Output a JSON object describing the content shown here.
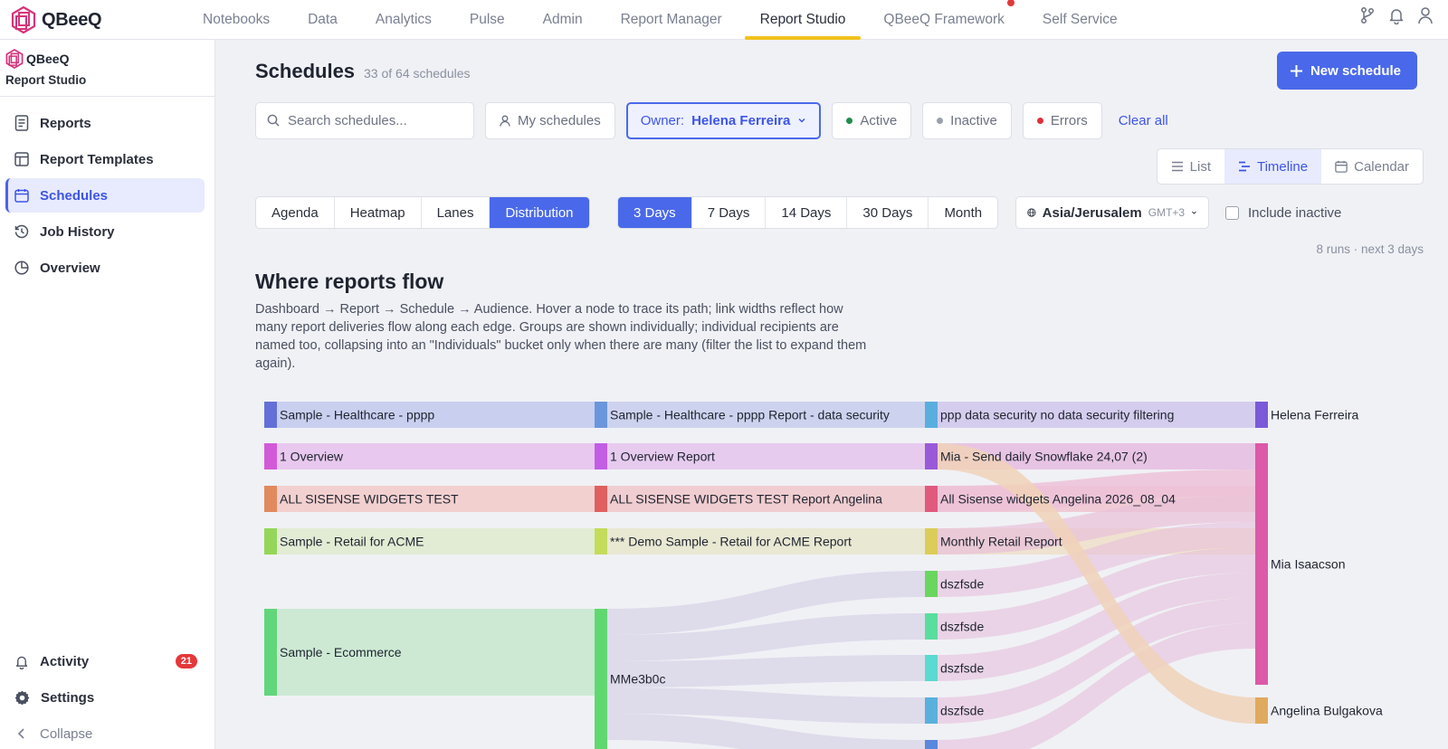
{
  "brand": {
    "name": "QBeeQ"
  },
  "topnav": {
    "items": [
      {
        "label": "Notebooks"
      },
      {
        "label": "Data"
      },
      {
        "label": "Analytics"
      },
      {
        "label": "Pulse"
      },
      {
        "label": "Admin"
      },
      {
        "label": "Report Manager"
      },
      {
        "label": "Report Studio"
      },
      {
        "label": "QBeeQ Framework"
      },
      {
        "label": "Self Service"
      }
    ],
    "active": "Report Studio",
    "notification_on": "QBeeQ Framework"
  },
  "sidebar": {
    "brand": "QBeeQ",
    "subtitle": "Report Studio",
    "items": [
      {
        "label": "Reports",
        "icon": "document-icon"
      },
      {
        "label": "Report Templates",
        "icon": "template-icon"
      },
      {
        "label": "Schedules",
        "icon": "calendar-icon",
        "active": true
      },
      {
        "label": "Job History",
        "icon": "history-icon"
      },
      {
        "label": "Overview",
        "icon": "pie-icon"
      }
    ],
    "activity": {
      "label": "Activity",
      "badge": "21"
    },
    "settings": {
      "label": "Settings"
    },
    "collapse": {
      "label": "Collapse"
    }
  },
  "header": {
    "title": "Schedules",
    "count": "33 of 64 schedules",
    "new_button": "New schedule"
  },
  "filters": {
    "search_placeholder": "Search schedules...",
    "my_schedules": "My schedules",
    "owner_label": "Owner:",
    "owner_value": "Helena Ferreira",
    "active": "Active",
    "inactive": "Inactive",
    "errors": "Errors",
    "clear_all": "Clear all",
    "colors": {
      "active": "#1e8e4e",
      "inactive": "#9aa0ad",
      "errors": "#e0303a"
    }
  },
  "view_toggle": [
    {
      "label": "List"
    },
    {
      "label": "Timeline",
      "active": true
    },
    {
      "label": "Calendar"
    }
  ],
  "mode_tabs": [
    {
      "label": "Agenda"
    },
    {
      "label": "Heatmap"
    },
    {
      "label": "Lanes"
    },
    {
      "label": "Distribution",
      "active": true
    }
  ],
  "range_tabs": [
    {
      "label": "3 Days",
      "active": true
    },
    {
      "label": "7 Days"
    },
    {
      "label": "14 Days"
    },
    {
      "label": "30 Days"
    },
    {
      "label": "Month"
    }
  ],
  "timezone": {
    "name": "Asia/Jerusalem",
    "offset": "GMT+3"
  },
  "include_inactive": {
    "label": "Include inactive",
    "checked": false
  },
  "runs_summary": "8 runs · next 3 days",
  "section": {
    "title": "Where reports flow",
    "description": "Dashboard → Report → Schedule → Audience. Hover a node to trace its path; link widths reflect how many report deliveries flow along each edge. Groups are shown individually; individual recipients are named too, collapsing into an \"Individuals\" bucket only when there are many (filter the list to expand them again)."
  },
  "sankey": {
    "columns": [
      [
        {
          "label": "Sample - Healthcare - pppp",
          "color": "#6470d8",
          "band": "#c9cfef"
        },
        {
          "label": "1 Overview",
          "color": "#d25ad8",
          "band": "#e8c8ee"
        },
        {
          "label": "ALL SISENSE WIDGETS TEST",
          "color": "#e08a5e",
          "band": "#f2d0cf"
        },
        {
          "label": "Sample - Retail for ACME",
          "color": "#95d65a",
          "band": "#e2ecd4"
        },
        {
          "label": "Sample - Ecommerce",
          "color": "#62d67a",
          "band": "#cde9d4"
        }
      ],
      [
        {
          "label": "Sample - Healthcare - pppp Report - data security",
          "color": "#6a96dc",
          "band": "#cdd3ee"
        },
        {
          "label": "1 Overview Report",
          "color": "#c25ee6",
          "band": "#e6cbef"
        },
        {
          "label": "ALL SISENSE WIDGETS TEST Report Angelina",
          "color": "#e06060",
          "band": "#f0cdd0"
        },
        {
          "label": "*** Demo Sample - Retail for ACME Report",
          "color": "#c4dc5a",
          "band": "#e9e8d3"
        },
        {
          "label": "MMe3b0c",
          "color": "#60d870",
          "band": "#cde9d4"
        }
      ],
      [
        {
          "label": "ppp data security no data security filtering",
          "color": "#5aaede",
          "band": "#d2cdef"
        },
        {
          "label": "Mia - Send daily Snowflake 24,07 (2)",
          "color": "#9a5ad8",
          "band": "#e6c8ec"
        },
        {
          "label": "All Sisense widgets Angelina 2026_08_04",
          "color": "#e05a7e",
          "band": "#f0cbd6"
        },
        {
          "label": "Monthly Retail Report",
          "color": "#dccc5a",
          "band": "#efe2d0"
        },
        {
          "label": "dszfsde",
          "color": "#6ad660",
          "band": "#dcd8ea"
        },
        {
          "label": "dszfsde",
          "color": "#5ade9e",
          "band": "#dcd8ea"
        },
        {
          "label": "dszfsde",
          "color": "#5adad0",
          "band": "#dcd8ea"
        },
        {
          "label": "dszfsde",
          "color": "#5ab0dc",
          "band": "#dcd8ea"
        },
        {
          "label": "",
          "color": "#5a88dc",
          "band": "#dcd8ea"
        }
      ],
      [
        {
          "label": "Helena Ferreira",
          "color": "#7a5ad8"
        },
        {
          "label": "Mia Isaacson",
          "color": "#dc5aa8"
        },
        {
          "label": "Angelina Bulgakova",
          "color": "#e0aa5e"
        }
      ]
    ]
  }
}
